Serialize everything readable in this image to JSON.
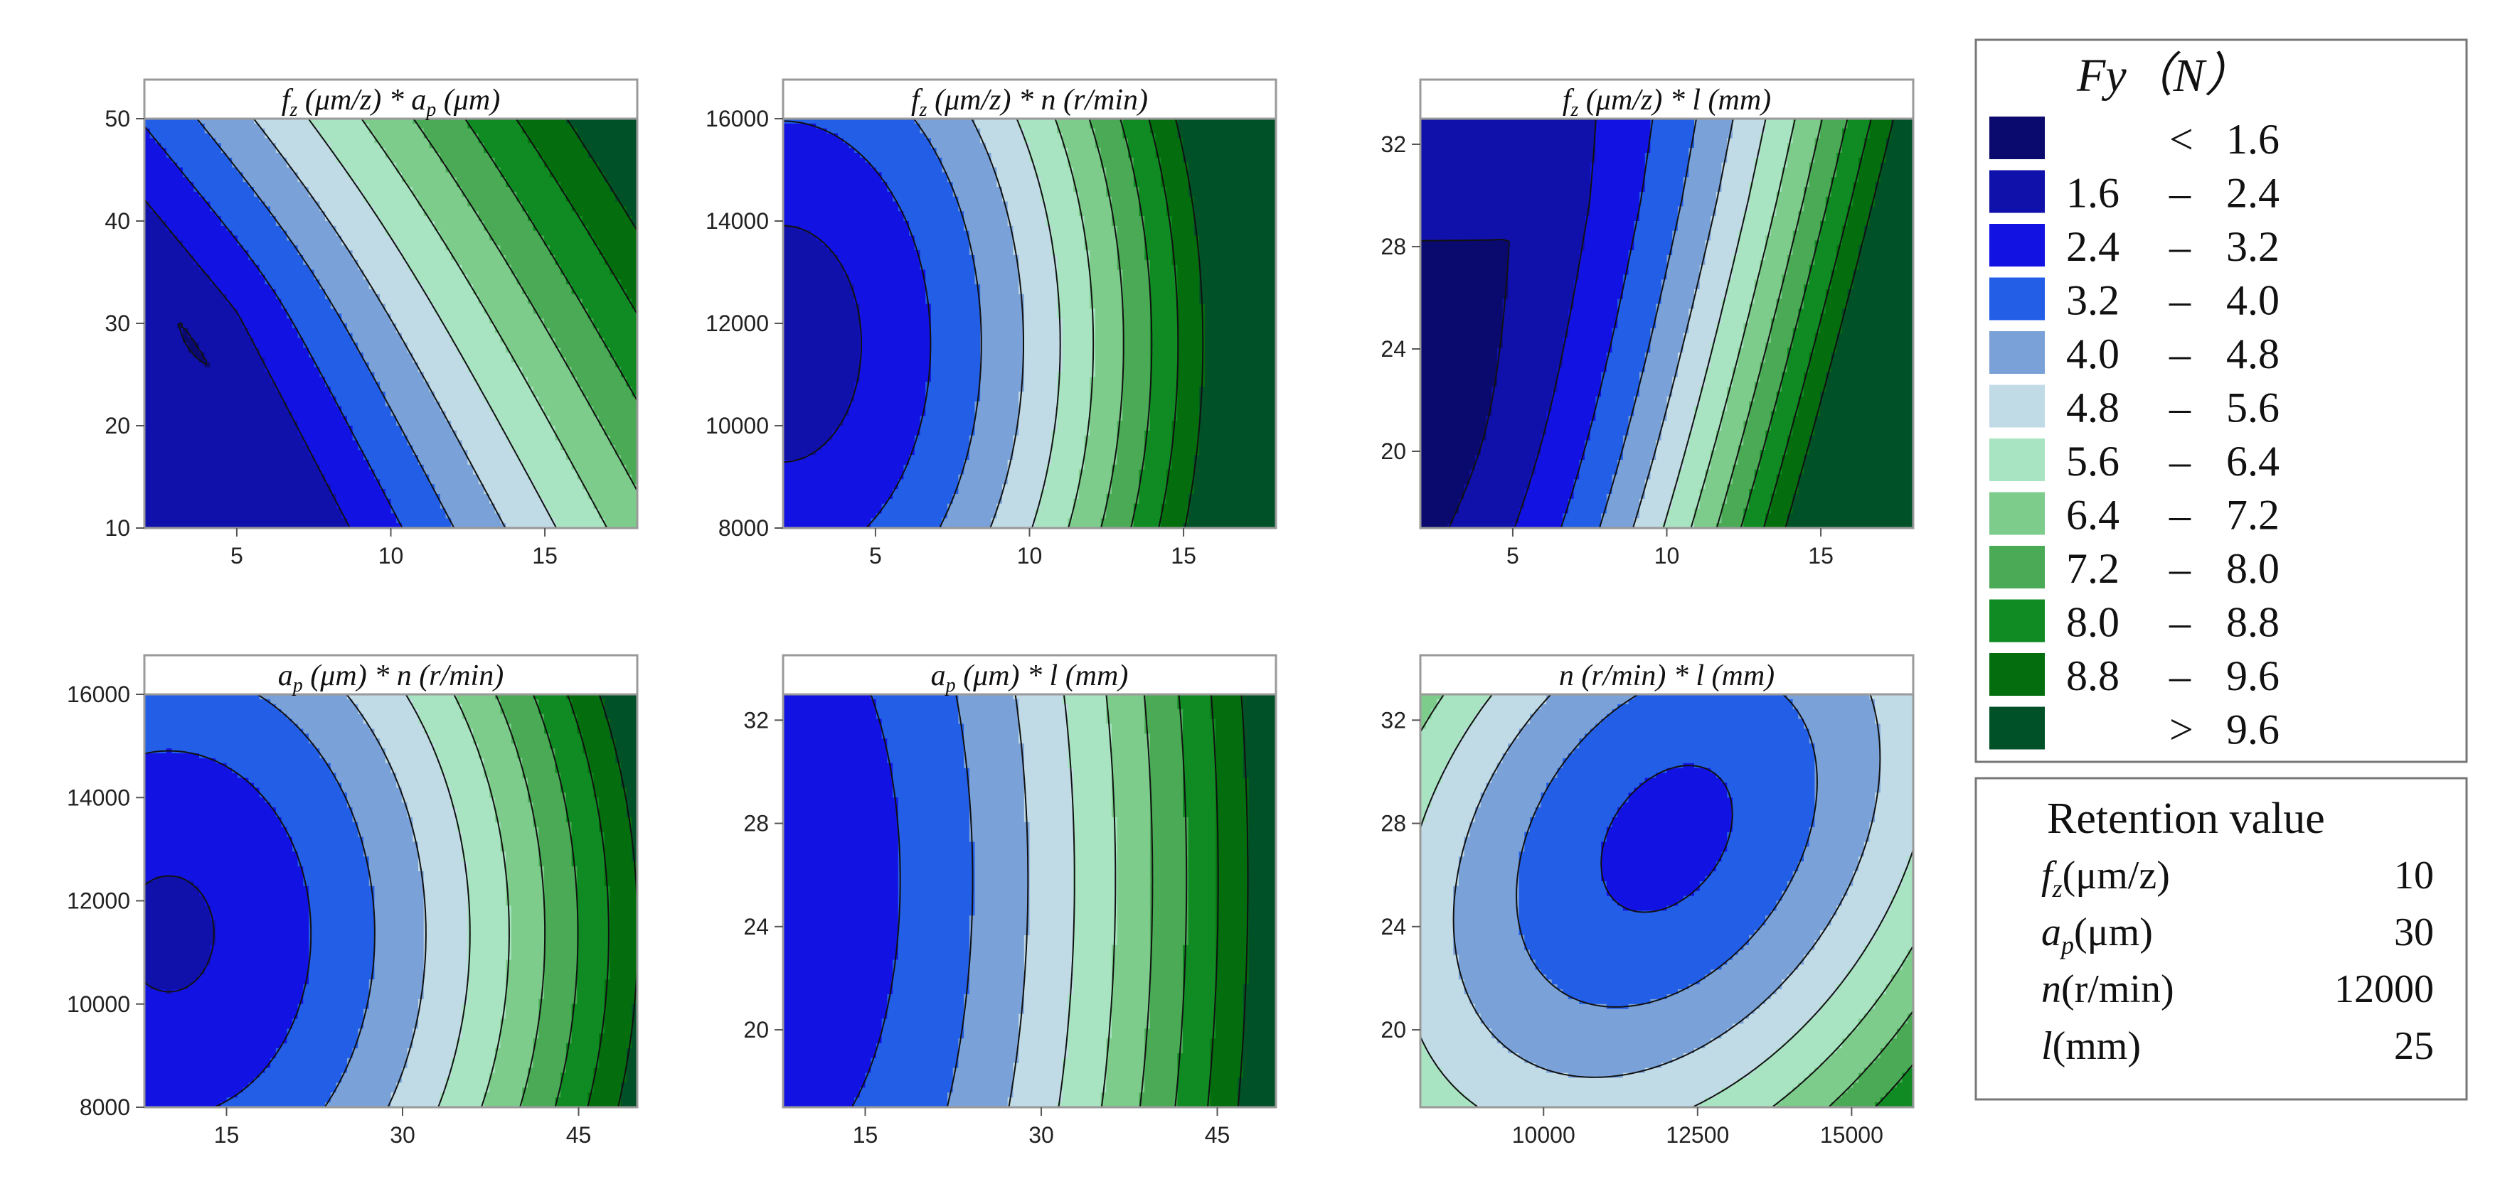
{
  "colors": [
    "#0a0a6e",
    "#1010aa",
    "#1212e3",
    "#235ee6",
    "#7aa2d8",
    "#c0dae6",
    "#a8e4c1",
    "#7dcc8c",
    "#4aaa55",
    "#108a22",
    "#046e0e",
    "#005128"
  ],
  "legend": {
    "title": "Fy（N）",
    "rows": [
      {
        "lo": "",
        "sep": "<",
        "hi": "1.6"
      },
      {
        "lo": "1.6",
        "sep": "–",
        "hi": "2.4"
      },
      {
        "lo": "2.4",
        "sep": "–",
        "hi": "3.2"
      },
      {
        "lo": "3.2",
        "sep": "–",
        "hi": "4.0"
      },
      {
        "lo": "4.0",
        "sep": "–",
        "hi": "4.8"
      },
      {
        "lo": "4.8",
        "sep": "–",
        "hi": "5.6"
      },
      {
        "lo": "5.6",
        "sep": "–",
        "hi": "6.4"
      },
      {
        "lo": "6.4",
        "sep": "–",
        "hi": "7.2"
      },
      {
        "lo": "7.2",
        "sep": "–",
        "hi": "8.0"
      },
      {
        "lo": "8.0",
        "sep": "–",
        "hi": "8.8"
      },
      {
        "lo": "8.8",
        "sep": "–",
        "hi": "9.6"
      },
      {
        "lo": "",
        "sep": ">",
        "hi": "9.6"
      }
    ]
  },
  "retention": {
    "title": "Retention value",
    "rows": [
      {
        "sym": "f",
        "sub": "z",
        "unit": "(μm/z)",
        "value": "10"
      },
      {
        "sym": "a",
        "sub": "p",
        "unit": "(μm)",
        "value": "30"
      },
      {
        "sym": "n",
        "sub": "",
        "unit": "(r/min)",
        "value": "12000"
      },
      {
        "sym": "l",
        "sub": "",
        "unit": "(mm)",
        "value": "25"
      }
    ]
  },
  "chart_data": [
    {
      "type": "contour",
      "title": "fz (μm/z) * ap (μm)",
      "t1": "f",
      "t1s": "z",
      "t1u": " (μm/z) ",
      "t2": "* a",
      "t2s": "p",
      "t2u": " (μm)",
      "xlim": [
        2,
        18
      ],
      "ylim": [
        10,
        50
      ],
      "xticks": [
        "5",
        "10",
        "15"
      ],
      "xtickv": [
        5,
        10,
        15
      ],
      "yticks": [
        "10",
        "20",
        "30",
        "40",
        "50"
      ],
      "ytickv": [
        10,
        20,
        30,
        40,
        50
      ],
      "model": {
        "c": 1.35,
        "x": [
          0.07,
          0.0
        ],
        "y": [
          0.03,
          0.0
        ],
        "xy": 0.006,
        "x0": 0,
        "y0": 0
      },
      "levels": [
        1.6,
        2.4,
        3.2,
        4.0,
        4.8,
        5.6,
        6.4,
        7.2,
        8.0,
        8.8,
        9.6
      ]
    },
    {
      "type": "contour",
      "title": "fz (μm/z) * n (r/min)",
      "t1": "f",
      "t1s": "z",
      "t1u": " (μm/z) ",
      "t2": "* n (r/min)",
      "t2s": "",
      "t2u": "",
      "xlim": [
        2,
        18
      ],
      "ylim": [
        8000,
        16000
      ],
      "xticks": [
        "5",
        "10",
        "15"
      ],
      "xtickv": [
        5,
        10,
        15
      ],
      "yticks": [
        "8000",
        "10000",
        "12000",
        "14000",
        "16000"
      ],
      "ytickv": [
        8000,
        10000,
        12000,
        14000,
        16000
      ],
      "model": {
        "c": 2.9,
        "x": [
          0.22,
          0.0
        ],
        "y": [
          0.0,
          0.0
        ],
        "xy": 0.0,
        "x0": 0,
        "y0": 0
      },
      "levels": [
        1.6,
        2.4,
        3.2,
        4.0,
        4.8,
        5.6,
        6.4,
        7.2,
        8.0,
        8.8,
        9.6
      ]
    },
    {
      "type": "contour",
      "title": "fz (μm/z) * l (mm)",
      "t1": "f",
      "t1s": "z",
      "t1u": " (μm/z) ",
      "t2": "* l (mm)",
      "t2s": "",
      "t2u": "",
      "xlim": [
        2,
        18
      ],
      "ylim": [
        17,
        33
      ],
      "xticks": [
        "5",
        "10",
        "15"
      ],
      "xtickv": [
        5,
        10,
        15
      ],
      "yticks": [
        "20",
        "24",
        "28",
        "32"
      ],
      "ytickv": [
        20,
        24,
        28,
        32
      ],
      "model": {
        "c": 2.2,
        "x": [
          0.28,
          0.0
        ],
        "y": [
          0.06,
          0.0
        ],
        "xy": 0.0,
        "x0": 0,
        "y0": 0
      },
      "levels": [
        1.6,
        2.4,
        3.2,
        4.0,
        4.8,
        5.6,
        6.4,
        7.2,
        8.0,
        8.8,
        9.6
      ]
    },
    {
      "type": "contour",
      "title": "ap (μm) * n (r/min)",
      "t1": "a",
      "t1s": "p",
      "t1u": " (μm) ",
      "t2": "* n (r/min)",
      "t2s": "",
      "t2u": "",
      "xlim": [
        8,
        50
      ],
      "ylim": [
        8000,
        16000
      ],
      "xticks": [
        "15",
        "30",
        "45"
      ],
      "xtickv": [
        15,
        30,
        45
      ],
      "yticks": [
        "8000",
        "10000",
        "12000",
        "14000",
        "16000"
      ],
      "ytickv": [
        8000,
        10000,
        12000,
        14000,
        16000
      ],
      "model": {
        "c": 2.9,
        "x": [
          0.08,
          0.0
        ],
        "y": [
          0.0,
          0.0
        ],
        "xy": 0.0,
        "x0": 0,
        "y0": 0
      },
      "levels": [
        1.6,
        2.4,
        3.2,
        4.0,
        4.8,
        5.6,
        6.4,
        7.2,
        8.0,
        8.8,
        9.6
      ]
    },
    {
      "type": "contour",
      "title": "ap (μm) * l (mm)",
      "t1": "a",
      "t1s": "p",
      "t1u": " (μm) ",
      "t2": "* l (mm)",
      "t2s": "",
      "t2u": "",
      "xlim": [
        8,
        50
      ],
      "ylim": [
        17,
        33
      ],
      "xticks": [
        "15",
        "30",
        "45"
      ],
      "xtickv": [
        15,
        30,
        45
      ],
      "yticks": [
        "20",
        "24",
        "28",
        "32"
      ],
      "ytickv": [
        20,
        24,
        28,
        32
      ],
      "model": {
        "c": 2.9,
        "x": [
          0.08,
          0.0
        ],
        "y": [
          0.03,
          0.0
        ],
        "xy": 0.0,
        "x0": 0,
        "y0": 0
      },
      "levels": [
        1.6,
        2.4,
        3.2,
        4.0,
        4.8,
        5.6,
        6.4,
        7.2,
        8.0,
        8.8,
        9.6
      ]
    },
    {
      "type": "contour",
      "title": "n (r/min) * l (mm)",
      "t1": "n (r/min) * l (mm)",
      "t1s": "",
      "t1u": "",
      "t2": "",
      "t2s": "",
      "t2u": "",
      "xlim": [
        8000,
        16000
      ],
      "ylim": [
        17,
        33
      ],
      "xticks": [
        "10000",
        "12500",
        "15000"
      ],
      "xtickv": [
        10000,
        12500,
        15000
      ],
      "yticks": [
        "20",
        "24",
        "28",
        "32"
      ],
      "ytickv": [
        20,
        24,
        28,
        32
      ],
      "model": {
        "c": 2.9,
        "x": [
          0.0,
          0.0
        ],
        "y": [
          0.0,
          0.0
        ],
        "xy": 0.0,
        "x0": 0,
        "y0": 0
      },
      "levels": [
        1.6,
        2.4,
        3.2,
        4.0,
        4.8,
        5.6,
        6.4,
        7.2,
        8.0,
        8.8,
        9.6
      ]
    }
  ]
}
